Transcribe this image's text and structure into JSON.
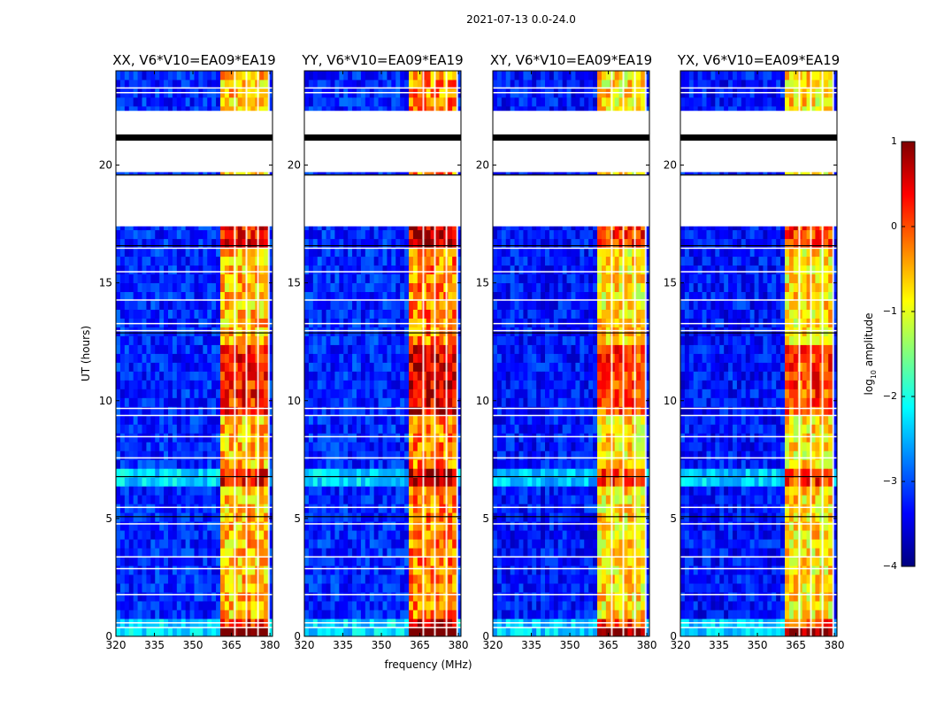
{
  "figure": {
    "suptitle": "2021-07-13 0.0-24.0"
  },
  "colorbar": {
    "label": "log",
    "label_sub": "10",
    "label_rest": " amplitude",
    "range": [
      -4,
      1
    ],
    "ticks": [
      {
        "value": 1,
        "label": "1"
      },
      {
        "value": 0,
        "label": "0"
      },
      {
        "value": -1,
        "label": "−1"
      },
      {
        "value": -2,
        "label": "−2"
      },
      {
        "value": -3,
        "label": "−3"
      },
      {
        "value": -4,
        "label": "−4"
      }
    ],
    "colors": [
      "#00007f",
      "#0000ff",
      "#007fff",
      "#00ffff",
      "#7fff7f",
      "#ffff00",
      "#ff7f00",
      "#ff0000",
      "#7f0000"
    ]
  },
  "chart_data": [
    {
      "type": "heatmap",
      "title": "XX, V6*V10=EA09*EA19",
      "xlabel": "",
      "ylabel": "UT (hours)",
      "xlim": [
        320,
        381
      ],
      "ylim": [
        0,
        24
      ],
      "xticks": [
        320,
        335,
        350,
        365,
        380
      ],
      "yticks": [
        0,
        5,
        10,
        15,
        20
      ],
      "z_scale": "log10 amplitude",
      "bright_band_MHz": [
        361,
        380
      ],
      "background_level": -3.2,
      "band_level": -0.8,
      "flagged_hours": [
        [
          19.7,
          22.3
        ],
        [
          17.4,
          19.6
        ]
      ]
    },
    {
      "type": "heatmap",
      "title": "YY, V6*V10=EA09*EA19",
      "xlabel": "frequency (MHz)",
      "ylabel": "",
      "xlim": [
        320,
        381
      ],
      "ylim": [
        0,
        24
      ],
      "xticks": [
        320,
        335,
        350,
        365,
        380
      ],
      "yticks": [
        0,
        5,
        10,
        15,
        20
      ],
      "z_scale": "log10 amplitude",
      "bright_band_MHz": [
        361,
        380
      ],
      "background_level": -3.2,
      "band_level": -0.5,
      "flagged_hours": [
        [
          19.7,
          22.3
        ],
        [
          17.4,
          19.6
        ]
      ]
    },
    {
      "type": "heatmap",
      "title": "XY, V6*V10=EA09*EA19",
      "xlabel": "",
      "ylabel": "",
      "xlim": [
        320,
        381
      ],
      "ylim": [
        0,
        24
      ],
      "xticks": [
        320,
        335,
        350,
        365,
        380
      ],
      "yticks": [
        0,
        5,
        10,
        15,
        20
      ],
      "z_scale": "log10 amplitude",
      "bright_band_MHz": [
        361,
        380
      ],
      "background_level": -3.3,
      "band_level": -1.0,
      "flagged_hours": [
        [
          19.7,
          22.3
        ],
        [
          17.4,
          19.6
        ]
      ]
    },
    {
      "type": "heatmap",
      "title": "YX, V6*V10=EA09*EA19",
      "xlabel": "",
      "ylabel": "",
      "xlim": [
        320,
        381
      ],
      "ylim": [
        0,
        24
      ],
      "xticks": [
        320,
        335,
        350,
        365,
        380
      ],
      "yticks": [
        0,
        5,
        10,
        15,
        20
      ],
      "z_scale": "log10 amplitude",
      "bright_band_MHz": [
        361,
        380
      ],
      "background_level": -3.3,
      "band_level": -1.0,
      "flagged_hours": [
        [
          19.7,
          22.3
        ],
        [
          17.4,
          19.6
        ]
      ]
    }
  ]
}
